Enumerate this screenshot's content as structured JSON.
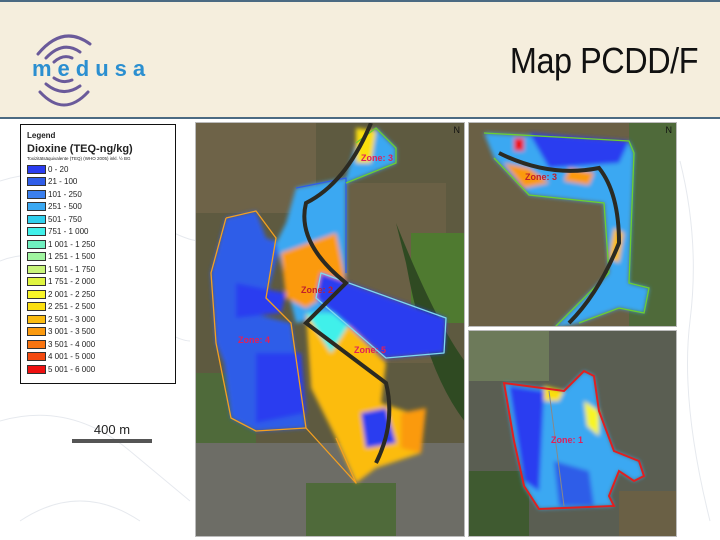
{
  "header": {
    "logo_text": "medusa",
    "title": "Map PCDD/F"
  },
  "legend": {
    "heading": "Legend",
    "title": "Dioxine (TEQ-ng/kg)",
    "subtitle": "Toxizitätsäquivalente (TEQ) (WHO 2005) inkl. ½ BG",
    "classes": [
      {
        "label": "0 - 20",
        "color": "#2a3cf0"
      },
      {
        "label": "21 - 100",
        "color": "#2f5de8"
      },
      {
        "label": "101 - 250",
        "color": "#3a7fee"
      },
      {
        "label": "251 - 500",
        "color": "#3aa8f2"
      },
      {
        "label": "501 - 750",
        "color": "#2fd0ee"
      },
      {
        "label": "751 - 1 000",
        "color": "#40f0ea"
      },
      {
        "label": "1 001 - 1 250",
        "color": "#70f0c0"
      },
      {
        "label": "1 251 - 1 500",
        "color": "#a0f5a0"
      },
      {
        "label": "1 501 - 1 750",
        "color": "#c8f57a"
      },
      {
        "label": "1 751 - 2 000",
        "color": "#e0f540"
      },
      {
        "label": "2 001 - 2 250",
        "color": "#f8f528"
      },
      {
        "label": "2 251 - 2 500",
        "color": "#fbdf10"
      },
      {
        "label": "2 501 - 3 000",
        "color": "#fcbc10"
      },
      {
        "label": "3 001 - 3 500",
        "color": "#fb9a10"
      },
      {
        "label": "3 501 - 4 000",
        "color": "#f97410"
      },
      {
        "label": "4 001 - 5 000",
        "color": "#f44a10"
      },
      {
        "label": "5 001 - 6 000",
        "color": "#ee1010"
      }
    ]
  },
  "scale_bar": {
    "label": "400 m"
  },
  "maps": {
    "main": {
      "zones": [
        "Zone: 3",
        "Zone: 2",
        "Zone: 4",
        "Zone: 5"
      ],
      "north": "N"
    },
    "top_right": {
      "zones": [
        "Zone: 3"
      ],
      "north": "N"
    },
    "bottom_right": {
      "zones": [
        "Zone: 1"
      ]
    }
  },
  "colors": {
    "header_bg": "#f5eedd",
    "header_border": "#4b6a82",
    "logo_text": "#2b8fd0",
    "logo_arcs": "#6a5a9a"
  }
}
